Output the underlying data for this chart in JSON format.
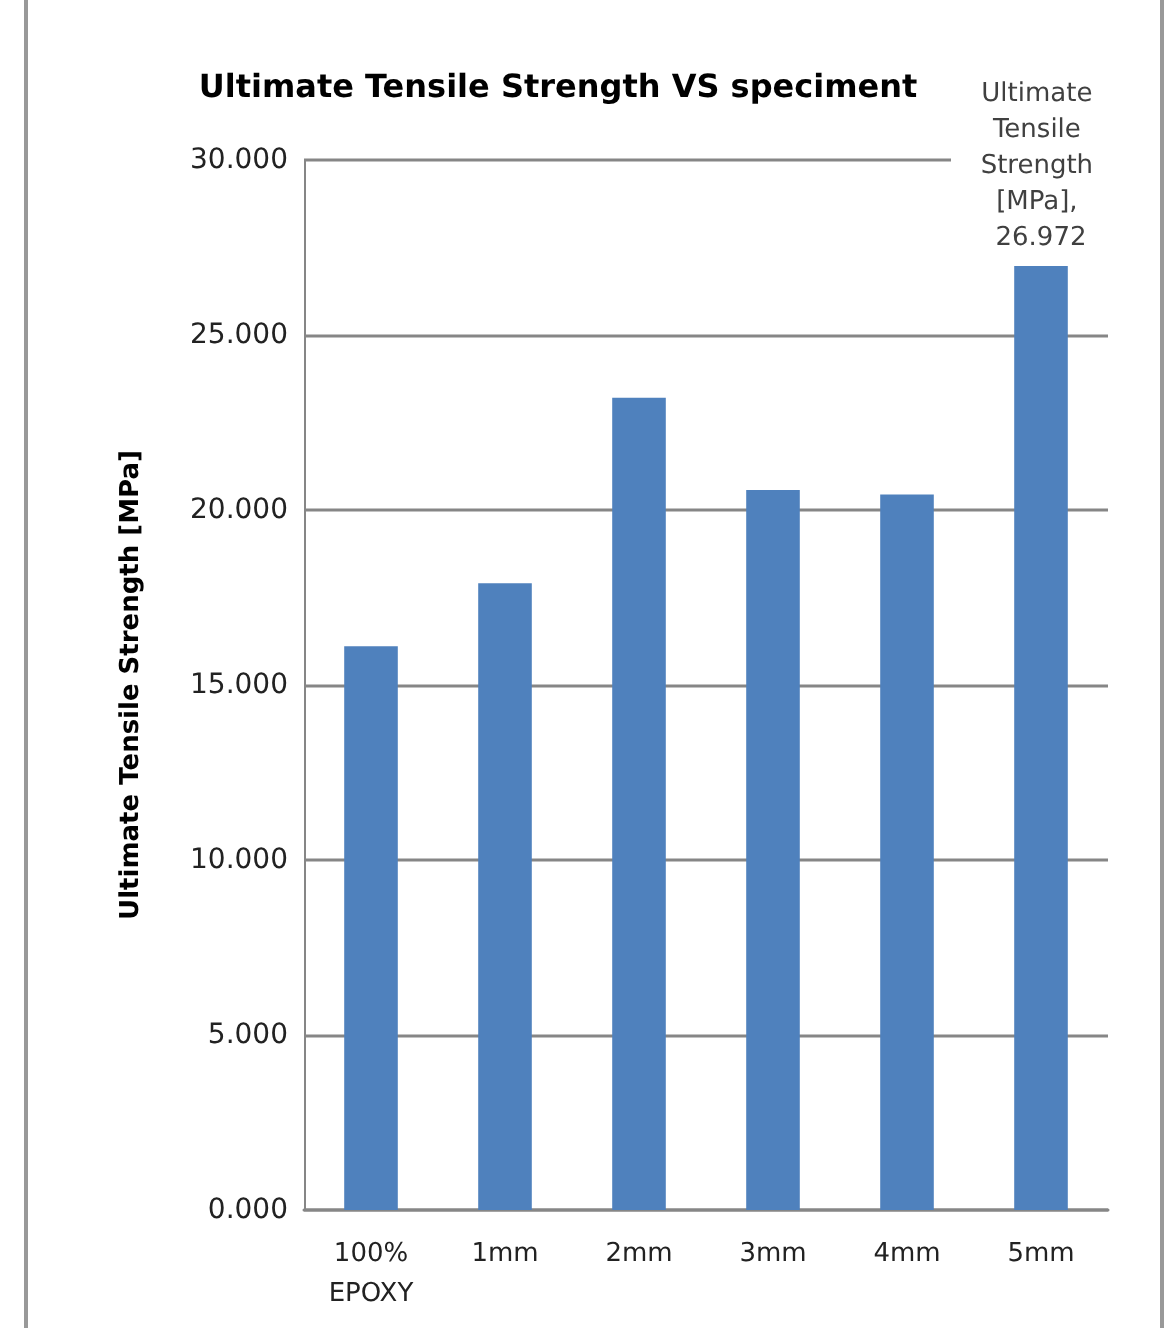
{
  "chart_data": {
    "type": "bar",
    "title": "Ultimate Tensile Strength VS speciment",
    "ylabel": "Ultimate Tensile Strength [MPa]",
    "categories": [
      "100%\nEPOXY",
      "1mm",
      "2mm",
      "3mm",
      "4mm",
      "5mm"
    ],
    "values": [
      16.11,
      17.91,
      23.21,
      20.57,
      20.44,
      26.972
    ],
    "value_labels": [
      null,
      null,
      null,
      null,
      null,
      "Ultimate Tensile Strength [MPa], 26.972"
    ],
    "color": "#4f81bd",
    "ylim": [
      0,
      30
    ],
    "yticks": [
      {
        "value": 0,
        "label": "0.000"
      },
      {
        "value": 5,
        "label": "5.000"
      },
      {
        "value": 10,
        "label": "10.000"
      },
      {
        "value": 15,
        "label": "15.000"
      },
      {
        "value": 20,
        "label": "20.000"
      },
      {
        "value": 25,
        "label": "25.000"
      },
      {
        "value": 30,
        "label": "30.000"
      }
    ],
    "grid": "y"
  }
}
